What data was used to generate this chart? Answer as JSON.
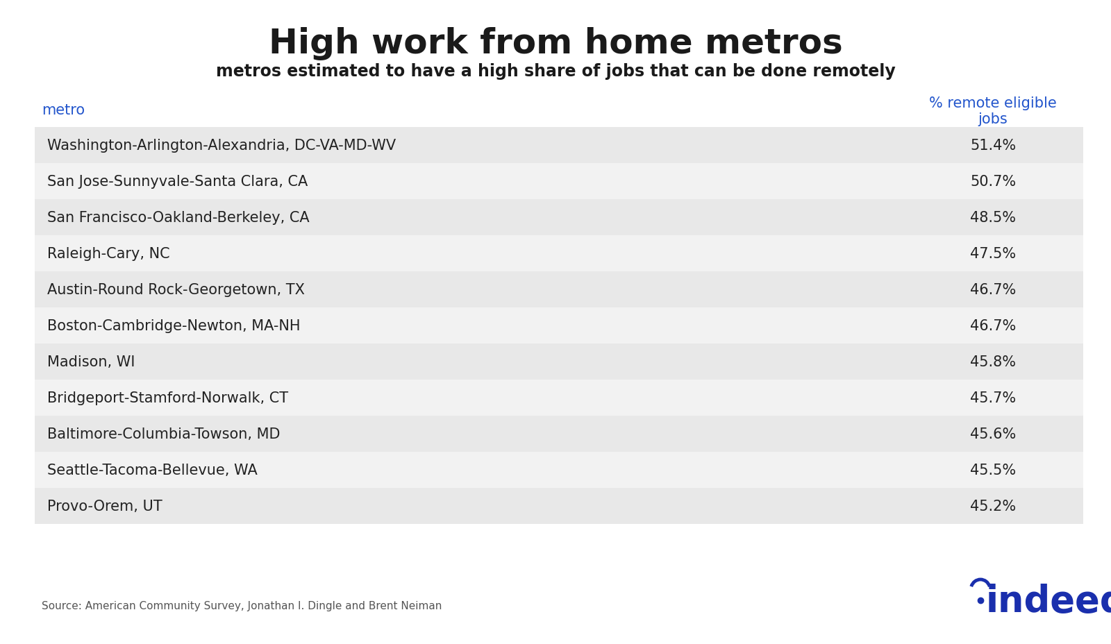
{
  "title": "High work from home metros",
  "subtitle": "metros estimated to have a high share of jobs that can be done remotely",
  "col1_header": "metro",
  "col2_header": "% remote eligible\njobs",
  "metros": [
    "Washington-Arlington-Alexandria, DC-VA-MD-WV",
    "San Jose-Sunnyvale-Santa Clara, CA",
    "San Francisco-Oakland-Berkeley, CA",
    "Raleigh-Cary, NC",
    "Austin-Round Rock-Georgetown, TX",
    "Boston-Cambridge-Newton, MA-NH",
    "Madison, WI",
    "Bridgeport-Stamford-Norwalk, CT",
    "Baltimore-Columbia-Towson, MD",
    "Seattle-Tacoma-Bellevue, WA",
    "Provo-Orem, UT"
  ],
  "values": [
    "51.4%",
    "50.7%",
    "48.5%",
    "47.5%",
    "46.7%",
    "46.7%",
    "45.8%",
    "45.7%",
    "45.6%",
    "45.5%",
    "45.2%"
  ],
  "row_bg_shaded": "#e8e8e8",
  "row_bg_white": "#f2f2f2",
  "header_color": "#2255cc",
  "title_color": "#1a1a1a",
  "subtitle_color": "#1a1a1a",
  "text_color": "#222222",
  "source_text": "Source: American Community Survey, Jonathan I. Dingle and Brent Neiman",
  "indeed_color": "#1a2fad",
  "background_color": "#ffffff",
  "title_fontsize": 36,
  "subtitle_fontsize": 17,
  "header_fontsize": 15,
  "row_fontsize": 15,
  "source_fontsize": 11,
  "indeed_fontsize": 38
}
